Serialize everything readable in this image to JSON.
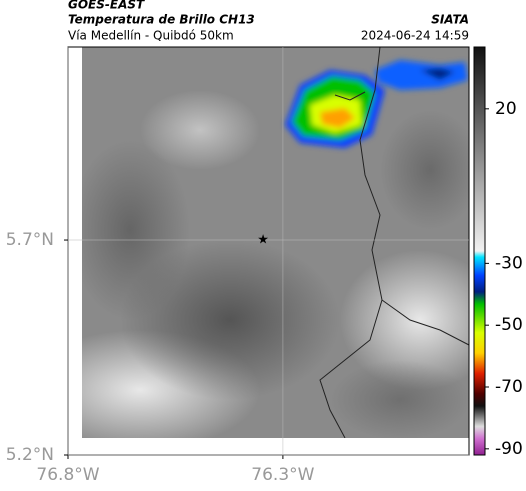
{
  "header": {
    "source": "GOES-EAST",
    "title": "Temperatura de Brillo CH13",
    "subtitle": "Vía Medellín - Quibdó 50km",
    "org": "SIATA",
    "datetime": "2024-06-24 14:59"
  },
  "map": {
    "xlim": [
      -76.8,
      -75.867
    ],
    "ylim": [
      5.2,
      6.149
    ],
    "xticks": [
      {
        "value": -76.8,
        "label": "76.8°W"
      },
      {
        "value": -76.3,
        "label": "76.3°W"
      }
    ],
    "yticks": [
      {
        "value": 5.2,
        "label": "5.2°N"
      },
      {
        "value": 5.7,
        "label": "5.7°N"
      }
    ],
    "grid": true,
    "marker": {
      "lon": -76.346,
      "lat": 5.7
    }
  },
  "colorbar": {
    "lim": [
      -92,
      40
    ],
    "ticks": [
      20,
      -30,
      -50,
      -70,
      -90
    ]
  }
}
